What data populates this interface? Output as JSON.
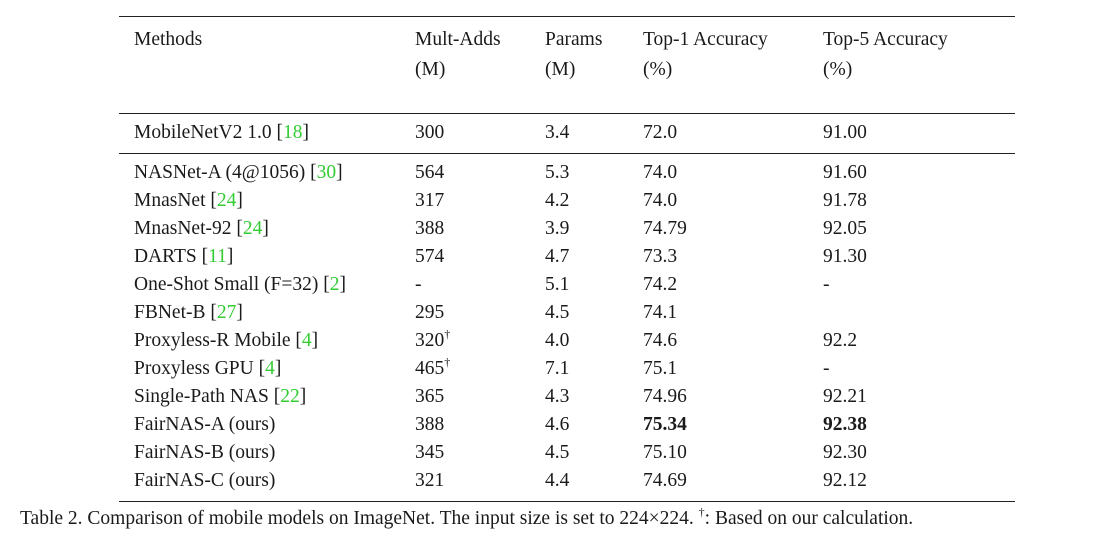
{
  "header": {
    "line1": [
      "Methods",
      "Mult-Adds",
      "Params",
      "Top-1 Accuracy",
      "Top-5 Accuracy"
    ],
    "line2": [
      "",
      "(M)",
      "(M)",
      "(%)",
      "(%)"
    ]
  },
  "baseline": [
    {
      "name": "MobileNetV2 1.0 ",
      "cite": "18",
      "madds": "300",
      "dagger": "",
      "params": "3.4",
      "top1": "72.0",
      "top5": "91.00",
      "bold": false
    }
  ],
  "rows": [
    {
      "name": "NASNet-A (4@1056) ",
      "cite": "30",
      "madds": "564",
      "dagger": "",
      "params": "5.3",
      "top1": "74.0",
      "top5": "91.60",
      "bold": false
    },
    {
      "name": "MnasNet ",
      "cite": "24",
      "madds": "317",
      "dagger": "",
      "params": "4.2",
      "top1": "74.0",
      "top5": "91.78",
      "bold": false
    },
    {
      "name": "MnasNet-92 ",
      "cite": "24",
      "madds": "388",
      "dagger": "",
      "params": "3.9",
      "top1": "74.79",
      "top5": "92.05",
      "bold": false
    },
    {
      "name": "DARTS ",
      "cite": "11",
      "madds": "574",
      "dagger": "",
      "params": "4.7",
      "top1": "73.3",
      "top5": "91.30",
      "bold": false
    },
    {
      "name": "One-Shot Small (F=32) ",
      "cite": "2",
      "madds": "-",
      "dagger": "",
      "params": "5.1",
      "top1": "74.2",
      "top5": "-",
      "bold": false
    },
    {
      "name": "FBNet-B ",
      "cite": "27",
      "madds": "295",
      "dagger": "",
      "params": "4.5",
      "top1": "74.1",
      "top5": "",
      "bold": false
    },
    {
      "name": "Proxyless-R Mobile ",
      "cite": "4",
      "madds": "320",
      "dagger": "†",
      "params": "4.0",
      "top1": "74.6",
      "top5": "92.2",
      "bold": false
    },
    {
      "name": "Proxyless GPU ",
      "cite": "4",
      "madds": "465",
      "dagger": "†",
      "params": "7.1",
      "top1": "75.1",
      "top5": "-",
      "bold": false
    },
    {
      "name": "Single-Path NAS ",
      "cite": "22",
      "madds": "365",
      "dagger": "",
      "params": "4.3",
      "top1": "74.96",
      "top5": "92.21",
      "bold": false
    },
    {
      "name": "FairNAS-A (ours)",
      "cite": "",
      "madds": "388",
      "dagger": "",
      "params": "4.6",
      "top1": "75.34",
      "top5": "92.38",
      "bold": true
    },
    {
      "name": "FairNAS-B (ours)",
      "cite": "",
      "madds": "345",
      "dagger": "",
      "params": "4.5",
      "top1": "75.10",
      "top5": "92.30",
      "bold": false
    },
    {
      "name": "FairNAS-C (ours)",
      "cite": "",
      "madds": "321",
      "dagger": "",
      "params": "4.4",
      "top1": "74.69",
      "top5": "92.12",
      "bold": false
    }
  ],
  "caption": {
    "before": "Table 2. Comparison of mobile models on ImageNet. The input size is set to 224×224. ",
    "dagger": "†",
    "after": ": Based on our calculation."
  }
}
